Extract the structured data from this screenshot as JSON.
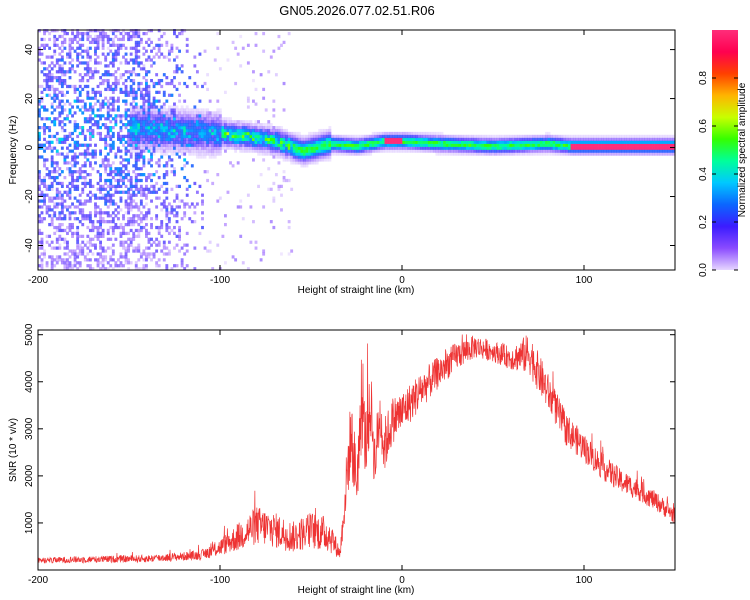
{
  "title": "GN05.2026.077.02.51.R06",
  "chart_data": [
    {
      "type": "heatmap",
      "xlabel": "Height of straight line (km)",
      "ylabel": "Frequency (Hz)",
      "xlim": [
        -200,
        150
      ],
      "ylim": [
        -50,
        48
      ],
      "x_ticks": [
        -200,
        -100,
        0,
        100
      ],
      "y_ticks": [
        -40,
        -20,
        0,
        20,
        40
      ],
      "colorbar": {
        "label": "Normalized spectral amplitude",
        "range": [
          0,
          1
        ],
        "ticks": [
          "0.0",
          "0.2",
          "0.4",
          "0.6",
          "0.8"
        ],
        "colormap": "hsv-rainbow",
        "stops": [
          "#e6d6ff",
          "#8a4bff",
          "#3b1cff",
          "#0b66ff",
          "#00c8ff",
          "#00ff9a",
          "#35ff00",
          "#c8ff00",
          "#ffb400",
          "#ff4000",
          "#ff0050",
          "#ff2d7a"
        ]
      },
      "features": {
        "noise_region_x": [
          -200,
          -110
        ],
        "ridge_centerline": [
          {
            "x": -140,
            "f": 7
          },
          {
            "x": -120,
            "f": 6
          },
          {
            "x": -100,
            "f": 5
          },
          {
            "x": -85,
            "f": 4
          },
          {
            "x": -70,
            "f": 2
          },
          {
            "x": -55,
            "f": -2
          },
          {
            "x": -40,
            "f": 1
          },
          {
            "x": -25,
            "f": 0
          },
          {
            "x": -10,
            "f": 2
          },
          {
            "x": 0,
            "f": 2
          },
          {
            "x": 20,
            "f": 1
          },
          {
            "x": 50,
            "f": 0
          },
          {
            "x": 80,
            "f": 1
          },
          {
            "x": 92,
            "f": 0
          },
          {
            "x": 150,
            "f": 0
          }
        ],
        "peaks": [
          {
            "x_start": -10,
            "x_end": 0,
            "f": 2,
            "amplitude": 1.0
          },
          {
            "x_start": 92,
            "x_end": 150,
            "f": 0,
            "amplitude": 1.0
          }
        ]
      }
    },
    {
      "type": "line",
      "xlabel": "Height of straight line (km)",
      "ylabel": "SNR (10 * v/v)",
      "xlim": [
        -200,
        150
      ],
      "ylim": [
        0,
        5100
      ],
      "x_ticks": [
        -200,
        -100,
        0,
        100
      ],
      "y_ticks": [
        1000,
        2000,
        3000,
        4000,
        5000
      ],
      "color": "#ee3333",
      "series": [
        {
          "x": [
            -200,
            -180,
            -160,
            -140,
            -120,
            -110,
            -100,
            -90,
            -80,
            -70,
            -60,
            -50,
            -40,
            -34,
            -30,
            -28,
            -25,
            -22,
            -20,
            -17,
            -15,
            -12,
            -10,
            -5,
            0,
            10,
            20,
            30,
            40,
            50,
            60,
            70,
            80,
            90,
            100,
            110,
            120,
            130,
            140,
            150
          ],
          "values": [
            200,
            220,
            230,
            240,
            290,
            320,
            480,
            700,
            950,
            850,
            700,
            850,
            750,
            350,
            2100,
            2900,
            1900,
            3400,
            2700,
            3500,
            2300,
            3300,
            2600,
            3200,
            3350,
            3800,
            4200,
            4550,
            4750,
            4650,
            4500,
            4600,
            3800,
            3000,
            2600,
            2200,
            1900,
            1700,
            1450,
            1150
          ],
          "noise": [
            60,
            70,
            75,
            80,
            90,
            110,
            180,
            300,
            420,
            380,
            330,
            400,
            380,
            120,
            700,
            800,
            700,
            800,
            800,
            700,
            700,
            600,
            600,
            500,
            450,
            400,
            350,
            300,
            250,
            220,
            250,
            450,
            400,
            350,
            300,
            280,
            250,
            230,
            200,
            180
          ]
        }
      ]
    }
  ]
}
